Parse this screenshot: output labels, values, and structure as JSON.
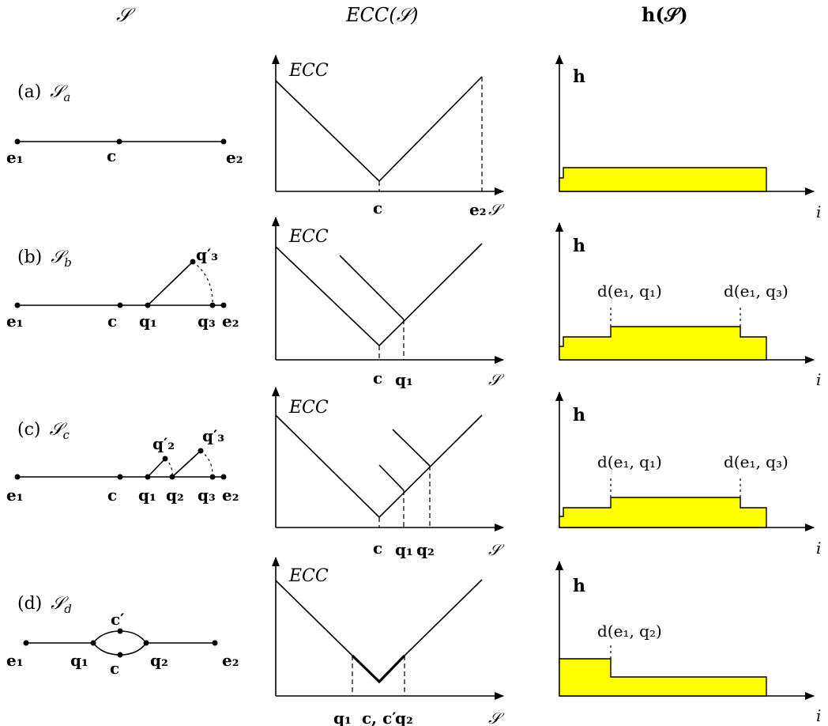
{
  "headers": {
    "col1": "𝒮",
    "col2": "ECC(𝒮)",
    "col3": "h(𝒮)"
  },
  "rows": [
    {
      "label_prefix": "(a)",
      "label_set": "𝒮",
      "label_sub": "a",
      "graph_labels": [
        "e₁",
        "c",
        "e₂"
      ],
      "ecc_ylabel": "ECC",
      "ecc_xticks": [
        "c",
        "e₂"
      ],
      "ecc_xaxis": "𝒮",
      "h_ylabel": "h",
      "h_xaxis": "i",
      "h_annotations": []
    },
    {
      "label_prefix": "(b)",
      "label_set": "𝒮",
      "label_sub": "b",
      "graph_labels": [
        "e₁",
        "c",
        "q₁",
        "q₃",
        "e₂",
        "q′₃"
      ],
      "ecc_ylabel": "ECC",
      "ecc_xticks": [
        "c",
        "q₁"
      ],
      "ecc_xaxis": "𝒮",
      "h_ylabel": "h",
      "h_xaxis": "i",
      "h_annotations": [
        "d(e₁, q₁)",
        "d(e₁, q₃)"
      ]
    },
    {
      "label_prefix": "(c)",
      "label_set": "𝒮",
      "label_sub": "c",
      "graph_labels": [
        "e₁",
        "c",
        "q₁",
        "q₂",
        "q₃",
        "e₂",
        "q′₂",
        "q′₃"
      ],
      "ecc_ylabel": "ECC",
      "ecc_xticks": [
        "c",
        "q₁",
        "q₂"
      ],
      "ecc_xaxis": "𝒮",
      "h_ylabel": "h",
      "h_xaxis": "i",
      "h_annotations": [
        "d(e₁, q₁)",
        "d(e₁, q₃)"
      ]
    },
    {
      "label_prefix": "(d)",
      "label_set": "𝒮",
      "label_sub": "d",
      "graph_labels": [
        "e₁",
        "q₁",
        "c′",
        "c",
        "q₂",
        "e₂"
      ],
      "ecc_ylabel": "ECC",
      "ecc_xticks": [
        "q₁",
        "c, c′",
        "q₂"
      ],
      "ecc_xaxis": "𝒮",
      "h_ylabel": "h",
      "h_xaxis": "i",
      "h_annotations": [
        "d(e₁, q₂)"
      ]
    }
  ]
}
